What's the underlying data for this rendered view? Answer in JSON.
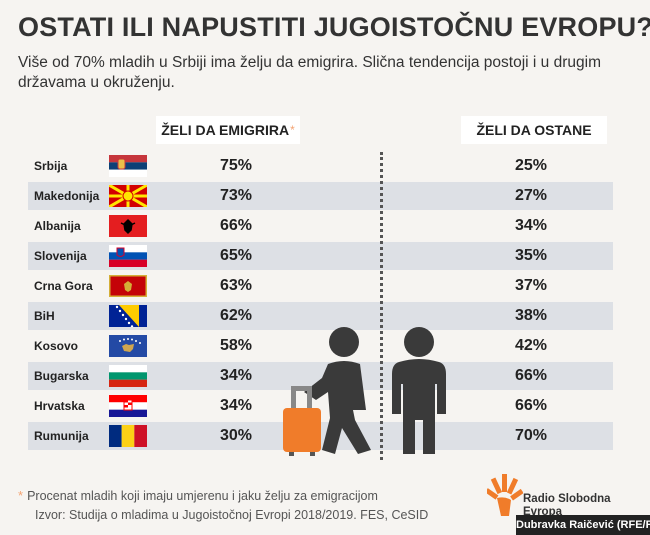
{
  "title": "OSTATI ILI NAPUSTITI JUGOISTOČNU EVROPU?",
  "subtitle": "Više od 70% mladih u Srbiji ima želju da emigrira. Slična tendencija postoji i u drugim državama u okruženju.",
  "columns": {
    "emigrate_label": "ŽELI DA EMIGRIRA",
    "emigrate_marker": "*",
    "stay_label": "ŽELI DA OSTANE"
  },
  "footnote": {
    "marker": "*",
    "text": "Procenat mladih koji imaju umjerenu i jaku želju za emigracijom"
  },
  "source": "Izvor: Studija o mladima u Jugoistočnoj Evropi 2018/2019. FES, CeSID",
  "logo_text_line1": "Radio Slobodna",
  "logo_text_line2": "Evropa",
  "author": "Dubravka Raičević (RFE/RL)",
  "colors": {
    "accent": "#f07c2a",
    "row_shade": "#dde0e5",
    "figure": "#3a3a3a"
  },
  "chart_data": {
    "type": "table",
    "columns": [
      "ŽELI DA EMIGRIRA",
      "ŽELI DA OSTANE"
    ],
    "rows": [
      {
        "country": "Srbija",
        "flag": "serbia-flag",
        "emigrate": "75%",
        "stay": "25%"
      },
      {
        "country": "Makedonija",
        "flag": "macedonia-flag",
        "emigrate": "73%",
        "stay": "27%"
      },
      {
        "country": "Albanija",
        "flag": "albania-flag",
        "emigrate": "66%",
        "stay": "34%"
      },
      {
        "country": "Slovenija",
        "flag": "slovenia-flag",
        "emigrate": "65%",
        "stay": "35%"
      },
      {
        "country": "Crna Gora",
        "flag": "montenegro-flag",
        "emigrate": "63%",
        "stay": "37%"
      },
      {
        "country": "BiH",
        "flag": "bih-flag",
        "emigrate": "62%",
        "stay": "38%"
      },
      {
        "country": "Kosovo",
        "flag": "kosovo-flag",
        "emigrate": "58%",
        "stay": "42%"
      },
      {
        "country": "Bugarska",
        "flag": "bulgaria-flag",
        "emigrate": "34%",
        "stay": "66%"
      },
      {
        "country": "Hrvatska",
        "flag": "croatia-flag",
        "emigrate": "34%",
        "stay": "66%"
      },
      {
        "country": "Rumunija",
        "flag": "romania-flag",
        "emigrate": "30%",
        "stay": "70%"
      }
    ]
  }
}
